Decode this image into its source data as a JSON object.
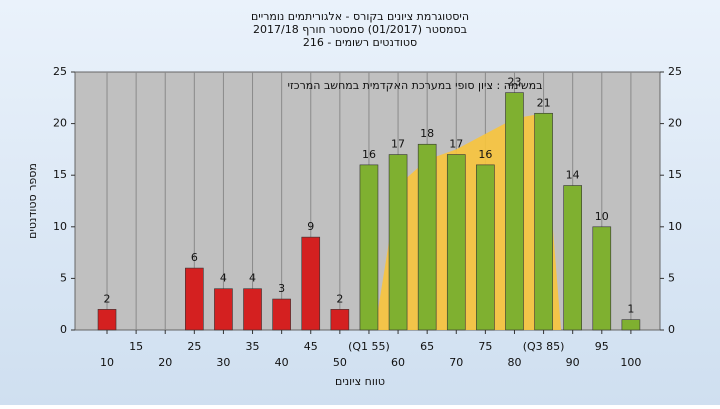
{
  "chart_data": {
    "type": "bar",
    "title": "היסטוגרמת ציונים בקורס - אלגוריתמים נומריים",
    "subtitle": "בסמסטר  (01/2017)  סמסטר חורף 2017/18",
    "subtitle2": "סטודנטים רשומים - 216",
    "annotation": "במשימה : ציון סופי במערכת האקדמית במחשב המרכזי",
    "xlabel": "טווח ציונים",
    "ylabel": "מספר סטודנטים",
    "x": [
      10,
      15,
      20,
      25,
      30,
      35,
      40,
      45,
      50,
      55,
      60,
      65,
      70,
      75,
      80,
      85,
      90,
      95,
      100
    ],
    "values": [
      2,
      0,
      0,
      6,
      4,
      4,
      3,
      9,
      2,
      16,
      17,
      18,
      17,
      16,
      23,
      21,
      14,
      10,
      1
    ],
    "colors": [
      "#d42020",
      "#d42020",
      "#d42020",
      "#d42020",
      "#d42020",
      "#d42020",
      "#d42020",
      "#d42020",
      "#d42020",
      "#7fb030",
      "#7fb030",
      "#7fb030",
      "#7fb030",
      "#7fb030",
      "#7fb030",
      "#7fb030",
      "#7fb030",
      "#7fb030",
      "#7fb030"
    ],
    "area": {
      "color": "#f8c43c",
      "x": [
        56,
        60,
        65,
        70,
        75,
        80,
        85,
        88
      ],
      "values": [
        0,
        14,
        16.5,
        17.5,
        19,
        20.5,
        21,
        0
      ]
    },
    "xlim": [
      4.5,
      105
    ],
    "xticks": [
      10,
      15,
      20,
      25,
      30,
      35,
      40,
      45,
      50,
      {
        "value": 55,
        "label": "(Q1 55)"
      },
      60,
      65,
      70,
      75,
      80,
      {
        "value": 85,
        "label": "(Q3 85)"
      },
      90,
      95,
      100
    ],
    "ylim": [
      0,
      25
    ],
    "yticks": [
      0,
      5,
      10,
      15,
      20,
      25
    ],
    "grid": true
  }
}
